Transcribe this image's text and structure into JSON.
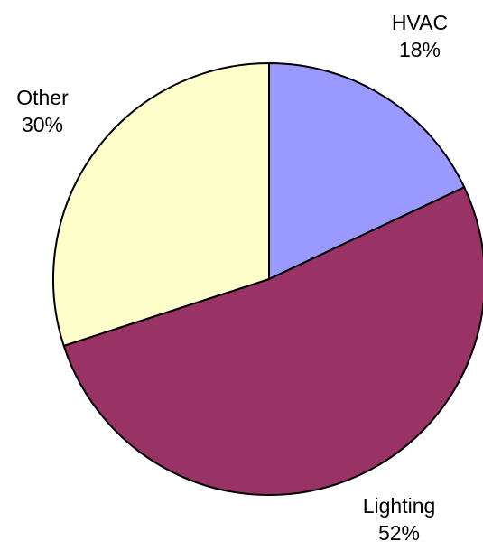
{
  "chart_data": {
    "type": "pie",
    "title": "",
    "slices": [
      {
        "label": "HVAC",
        "value": 18,
        "value_label": "18%",
        "color": "#9999ff"
      },
      {
        "label": "Lighting",
        "value": 52,
        "value_label": "52%",
        "color": "#993366"
      },
      {
        "label": "Other",
        "value": 30,
        "value_label": "30%",
        "color": "#ffffcc"
      }
    ],
    "start_angle_deg": 0,
    "direction": "clockwise",
    "legend": "none"
  }
}
